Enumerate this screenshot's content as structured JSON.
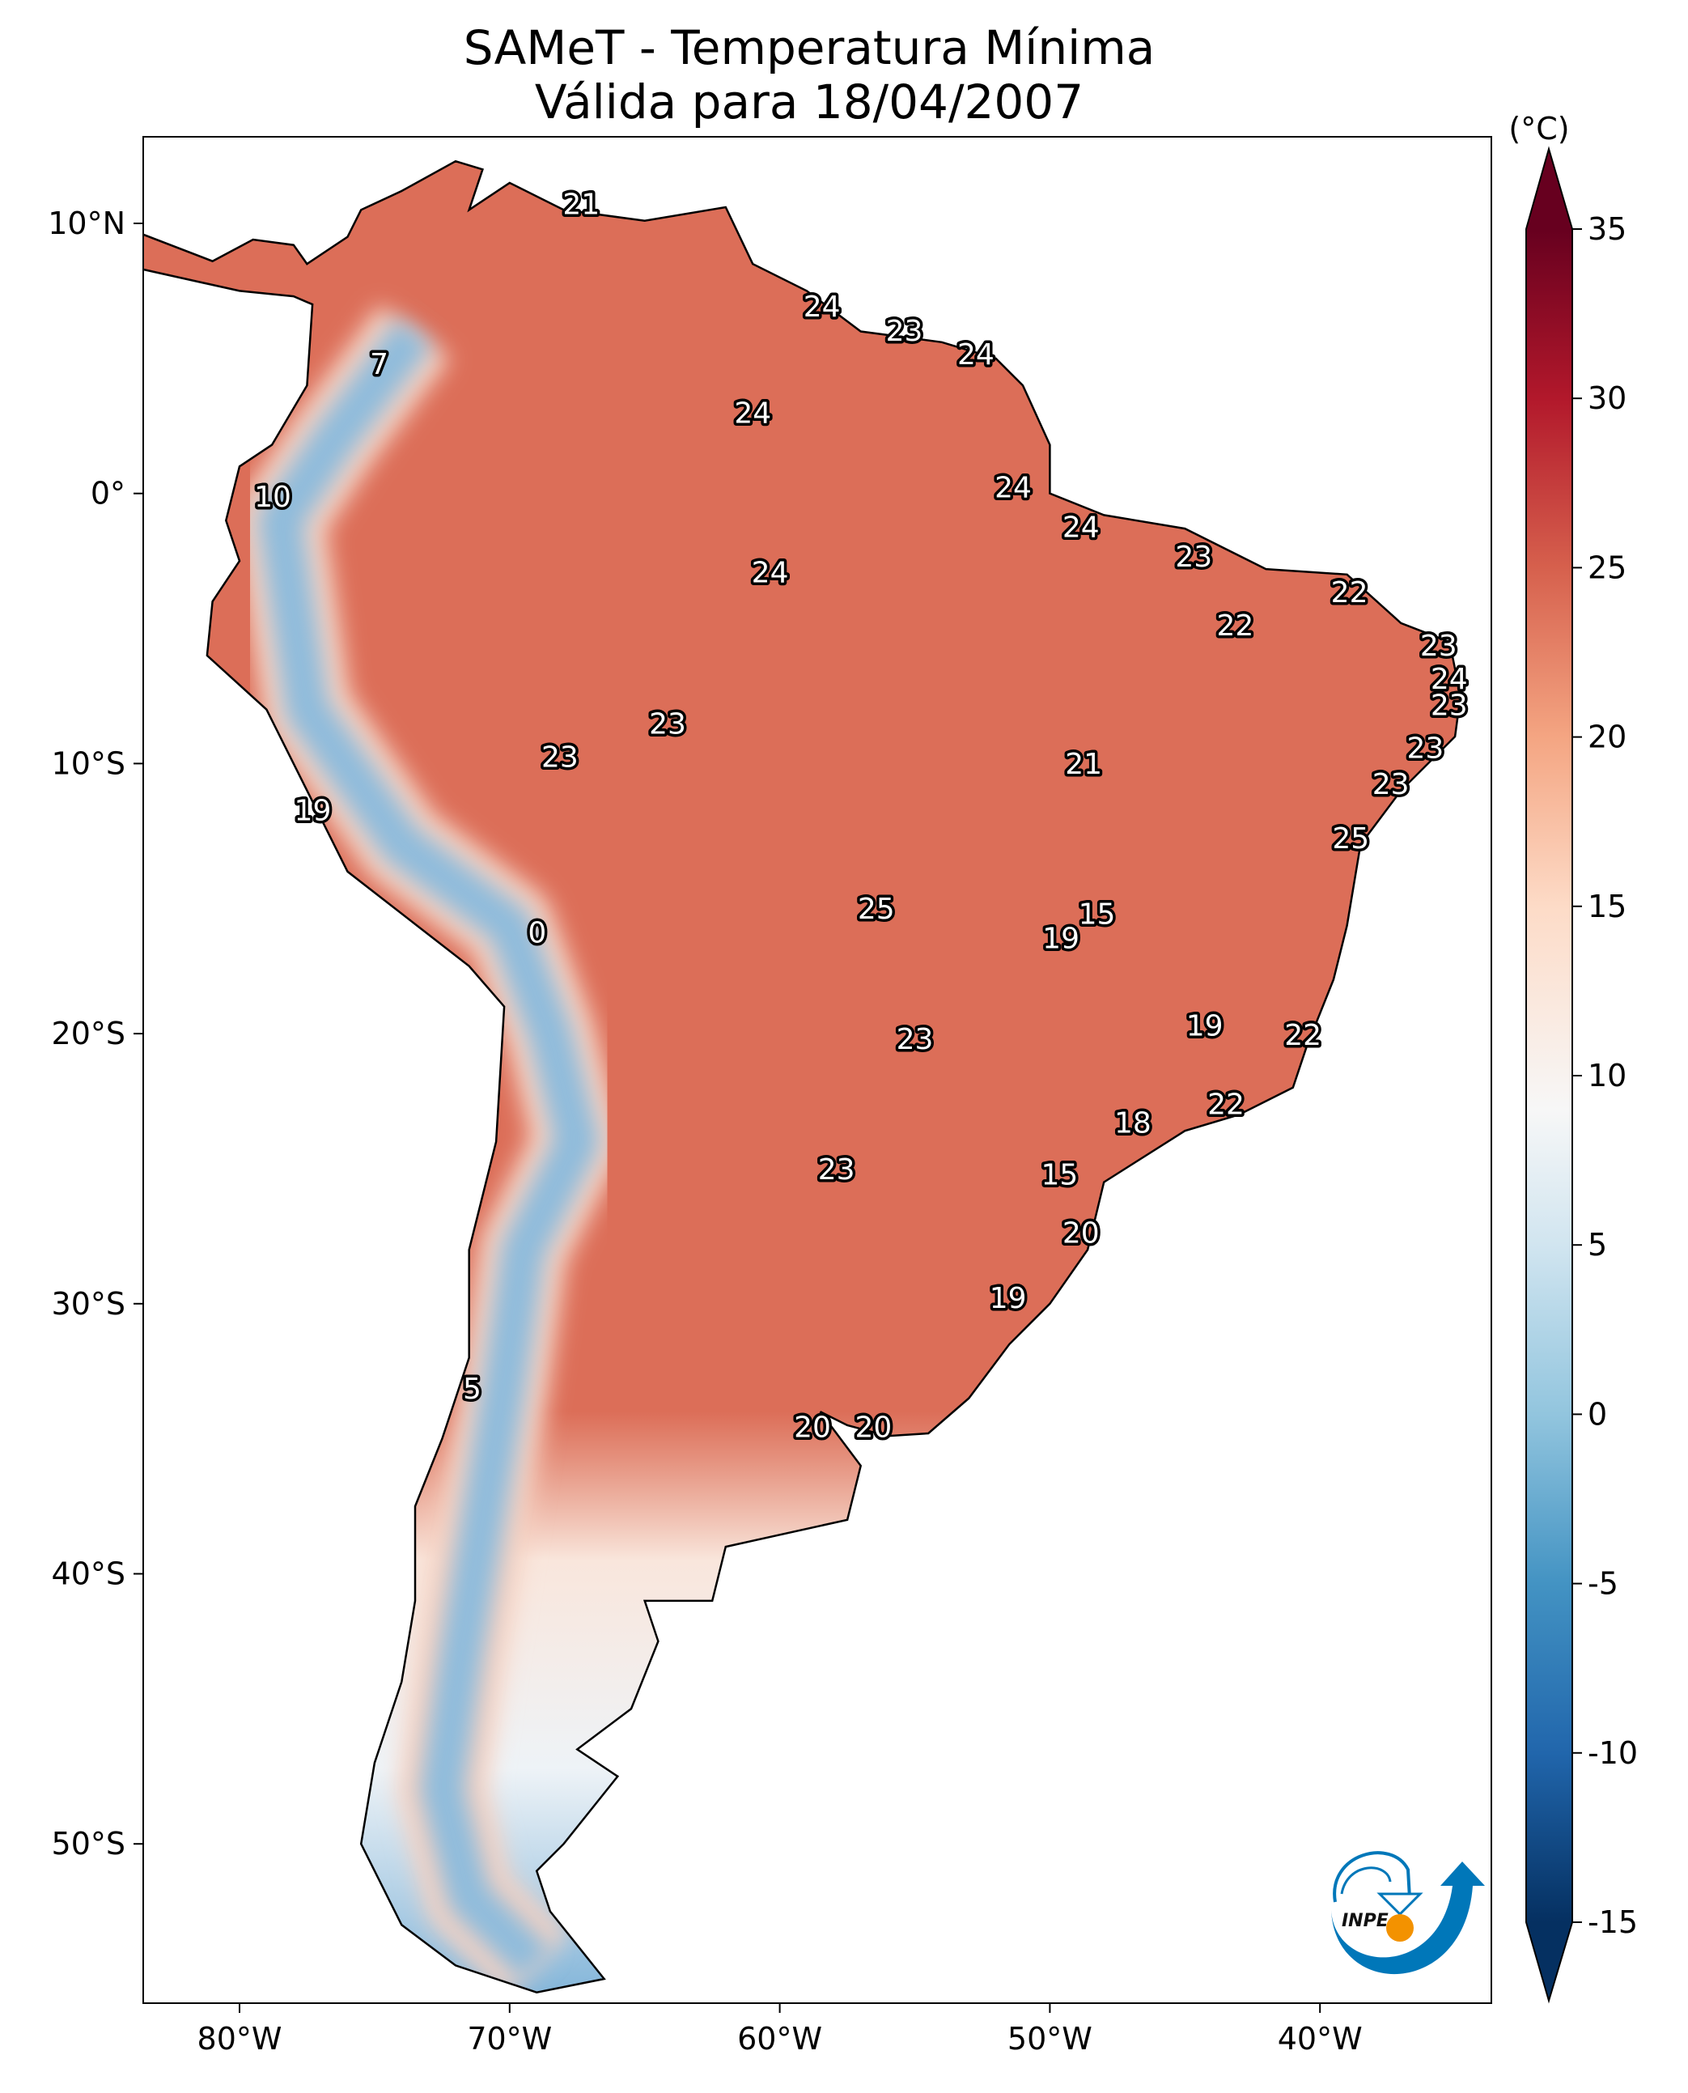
{
  "title": {
    "line1": "SAMeT - Temperatura Mínima",
    "line2": "Válida para 18/04/2007"
  },
  "colorbar": {
    "unit_label": "(°C)",
    "ticks": [
      "35",
      "30",
      "25",
      "20",
      "15",
      "10",
      "5",
      "0",
      "-5",
      "-10",
      "-15"
    ],
    "tick_values": [
      35,
      30,
      25,
      20,
      15,
      10,
      5,
      0,
      -5,
      -10,
      -15
    ],
    "range": [
      -15,
      35
    ],
    "colormap": "RdBu_r",
    "extend": "both"
  },
  "axes": {
    "lon_ticks": [
      "80°W",
      "70°W",
      "60°W",
      "50°W",
      "40°W"
    ],
    "lon_values": [
      -80,
      -70,
      -60,
      -50,
      -40
    ],
    "lat_ticks": [
      "10°N",
      "0°",
      "10°S",
      "20°S",
      "30°S",
      "40°S",
      "50°S"
    ],
    "lat_values": [
      10,
      0,
      -10,
      -20,
      -30,
      -40,
      -50
    ],
    "extent": {
      "lon": [
        -83.6,
        -33.6
      ],
      "lat": [
        -55.9,
        13.2
      ]
    }
  },
  "logo": {
    "text": "INPE",
    "blue": "#0077b9",
    "orange": "#f39200"
  },
  "labels": [
    {
      "v": "21",
      "lon": -67.35,
      "lat": 10.64
    },
    {
      "v": "24",
      "lon": -58.44,
      "lat": 6.85
    },
    {
      "v": "23",
      "lon": -55.39,
      "lat": 5.96
    },
    {
      "v": "24",
      "lon": -52.74,
      "lat": 5.08
    },
    {
      "v": "7",
      "lon": -74.83,
      "lat": 4.73
    },
    {
      "v": "24",
      "lon": -61.0,
      "lat": 2.91
    },
    {
      "v": "10",
      "lon": -78.77,
      "lat": -0.19
    },
    {
      "v": "24",
      "lon": -51.36,
      "lat": 0.16
    },
    {
      "v": "24",
      "lon": -48.85,
      "lat": -1.32
    },
    {
      "v": "24",
      "lon": -60.36,
      "lat": -2.99
    },
    {
      "v": "23",
      "lon": -44.67,
      "lat": -2.4
    },
    {
      "v": "22",
      "lon": -38.91,
      "lat": -3.73
    },
    {
      "v": "22",
      "lon": -43.14,
      "lat": -4.96
    },
    {
      "v": "23",
      "lon": -35.61,
      "lat": -5.7
    },
    {
      "v": "24",
      "lon": -35.22,
      "lat": -6.93
    },
    {
      "v": "23",
      "lon": -35.22,
      "lat": -7.91
    },
    {
      "v": "23",
      "lon": -64.15,
      "lat": -8.6
    },
    {
      "v": "23",
      "lon": -36.1,
      "lat": -9.49
    },
    {
      "v": "21",
      "lon": -48.75,
      "lat": -10.08
    },
    {
      "v": "23",
      "lon": -68.14,
      "lat": -9.83
    },
    {
      "v": "23",
      "lon": -37.38,
      "lat": -10.82
    },
    {
      "v": "19",
      "lon": -77.29,
      "lat": -11.8
    },
    {
      "v": "25",
      "lon": -38.86,
      "lat": -12.83
    },
    {
      "v": "25",
      "lon": -56.43,
      "lat": -15.44
    },
    {
      "v": "15",
      "lon": -48.26,
      "lat": -15.64
    },
    {
      "v": "19",
      "lon": -49.59,
      "lat": -16.53
    },
    {
      "v": "0",
      "lon": -68.98,
      "lat": -16.33
    },
    {
      "v": "19",
      "lon": -44.27,
      "lat": -19.77
    },
    {
      "v": "22",
      "lon": -40.63,
      "lat": -20.12
    },
    {
      "v": "23",
      "lon": -55.0,
      "lat": -20.27
    },
    {
      "v": "22",
      "lon": -43.48,
      "lat": -22.68
    },
    {
      "v": "18",
      "lon": -46.93,
      "lat": -23.37
    },
    {
      "v": "23",
      "lon": -57.9,
      "lat": -25.09
    },
    {
      "v": "15",
      "lon": -49.64,
      "lat": -25.29
    },
    {
      "v": "20",
      "lon": -48.85,
      "lat": -27.45
    },
    {
      "v": "19",
      "lon": -51.55,
      "lat": -29.86
    },
    {
      "v": "5",
      "lon": -71.39,
      "lat": -33.21
    },
    {
      "v": "20",
      "lon": -58.79,
      "lat": -34.64
    },
    {
      "v": "20",
      "lon": -56.53,
      "lat": -34.64
    }
  ]
}
